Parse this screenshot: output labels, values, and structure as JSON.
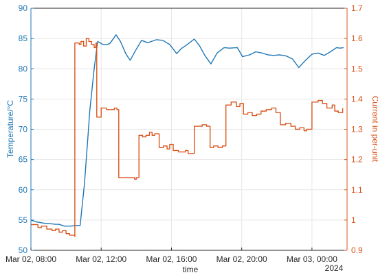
{
  "chart_data": {
    "type": "line",
    "title": "",
    "xlabel": "time",
    "x_year_label": "2024",
    "x_tick_labels": [
      "Mar 02, 08:00",
      "Mar 02, 12:00",
      "Mar 02, 16:00",
      "Mar 02, 20:00",
      "Mar 03, 00:00"
    ],
    "x_ticks_hours": [
      8,
      12,
      16,
      20,
      24
    ],
    "x_unit": "hours since Mar 02, 00:00",
    "xlim": [
      8,
      26
    ],
    "grid": true,
    "y_left": {
      "label": "Temperature/°C",
      "lim": [
        50,
        90
      ],
      "ticks": [
        50,
        55,
        60,
        65,
        70,
        75,
        80,
        85,
        90
      ],
      "color": "#1f77b4"
    },
    "y_right": {
      "label": "Current in per-unit",
      "lim": [
        0.9,
        1.7
      ],
      "ticks": [
        0.9,
        1.0,
        1.1,
        1.2,
        1.3,
        1.4,
        1.5,
        1.6,
        1.7
      ],
      "tick_labels": [
        "0.9",
        "1",
        "1.1",
        "1.2",
        "1.3",
        "1.4",
        "1.5",
        "1.6",
        "1.7"
      ],
      "color": "#d9541c"
    },
    "series": [
      {
        "axis": "left",
        "color": "#1f77b4",
        "style": "smooth",
        "x": [
          8.0,
          8.3,
          8.7,
          9.1,
          9.4,
          9.6,
          9.9,
          10.3,
          10.55,
          10.8,
          11.05,
          11.25,
          11.35,
          11.6,
          11.8,
          12.1,
          12.35,
          12.5,
          12.85,
          13.1,
          13.4,
          13.65,
          13.95,
          14.3,
          14.65,
          14.85,
          15.15,
          15.5,
          15.9,
          16.3,
          16.55,
          16.9,
          17.3,
          17.6,
          17.9,
          18.25,
          18.6,
          19.0,
          19.3,
          19.75,
          20.05,
          20.45,
          20.8,
          21.15,
          21.5,
          21.8,
          22.15,
          22.55,
          22.9,
          23.25,
          23.6,
          24.0,
          24.35,
          24.7,
          25.05,
          25.4,
          25.6,
          25.8
        ],
        "values": [
          55.0,
          54.7,
          54.5,
          54.4,
          54.3,
          54.3,
          54.0,
          54.0,
          54.1,
          54.1,
          61.0,
          69.0,
          73.0,
          80.0,
          84.5,
          84.0,
          84.0,
          84.2,
          85.6,
          84.5,
          82.5,
          81.4,
          83.0,
          84.7,
          84.3,
          84.5,
          84.8,
          84.7,
          84.0,
          82.5,
          83.3,
          84.0,
          84.9,
          83.8,
          82.2,
          80.8,
          82.6,
          83.5,
          83.4,
          83.5,
          82.0,
          82.3,
          82.8,
          82.6,
          82.3,
          82.2,
          82.3,
          82.1,
          81.6,
          80.2,
          81.3,
          82.4,
          82.6,
          82.2,
          82.8,
          83.5,
          83.4,
          83.5
        ]
      },
      {
        "axis": "right",
        "color": "#d9541c",
        "style": "step",
        "x": [
          8.0,
          8.4,
          8.6,
          8.9,
          9.2,
          9.4,
          9.6,
          9.8,
          10.0,
          10.2,
          10.5,
          10.5,
          10.75,
          10.85,
          11.0,
          11.15,
          11.3,
          11.45,
          11.6,
          11.7,
          11.75,
          12.0,
          12.3,
          12.55,
          12.75,
          12.9,
          13.0,
          13.5,
          13.9,
          14.0,
          14.15,
          14.35,
          14.55,
          14.75,
          14.9,
          15.05,
          15.3,
          15.55,
          15.75,
          15.9,
          16.1,
          16.4,
          16.6,
          16.8,
          16.95,
          17.3,
          17.5,
          17.75,
          18.0,
          18.2,
          18.4,
          18.65,
          18.9,
          19.1,
          19.4,
          19.7,
          19.9,
          20.1,
          20.35,
          20.6,
          20.85,
          21.1,
          21.4,
          21.7,
          21.95,
          22.2,
          22.5,
          22.8,
          23.05,
          23.3,
          23.55,
          23.7,
          24.0,
          24.35,
          24.6,
          24.85,
          25.15,
          25.3,
          25.5,
          25.75
        ],
        "values": [
          0.985,
          0.975,
          0.98,
          0.97,
          0.965,
          0.97,
          0.96,
          0.965,
          0.955,
          0.95,
          0.945,
          1.585,
          1.58,
          1.59,
          1.575,
          1.6,
          1.59,
          1.58,
          1.57,
          1.585,
          1.34,
          1.37,
          1.365,
          1.365,
          1.37,
          1.365,
          1.14,
          1.14,
          1.135,
          1.14,
          1.28,
          1.275,
          1.28,
          1.29,
          1.28,
          1.285,
          1.24,
          1.245,
          1.235,
          1.25,
          1.23,
          1.225,
          1.225,
          1.23,
          1.22,
          1.31,
          1.31,
          1.315,
          1.31,
          1.24,
          1.245,
          1.24,
          1.245,
          1.38,
          1.39,
          1.375,
          1.385,
          1.35,
          1.355,
          1.345,
          1.35,
          1.36,
          1.365,
          1.37,
          1.355,
          1.315,
          1.32,
          1.31,
          1.3,
          1.305,
          1.295,
          1.3,
          1.39,
          1.395,
          1.385,
          1.37,
          1.38,
          1.36,
          1.355,
          1.37
        ]
      }
    ]
  }
}
